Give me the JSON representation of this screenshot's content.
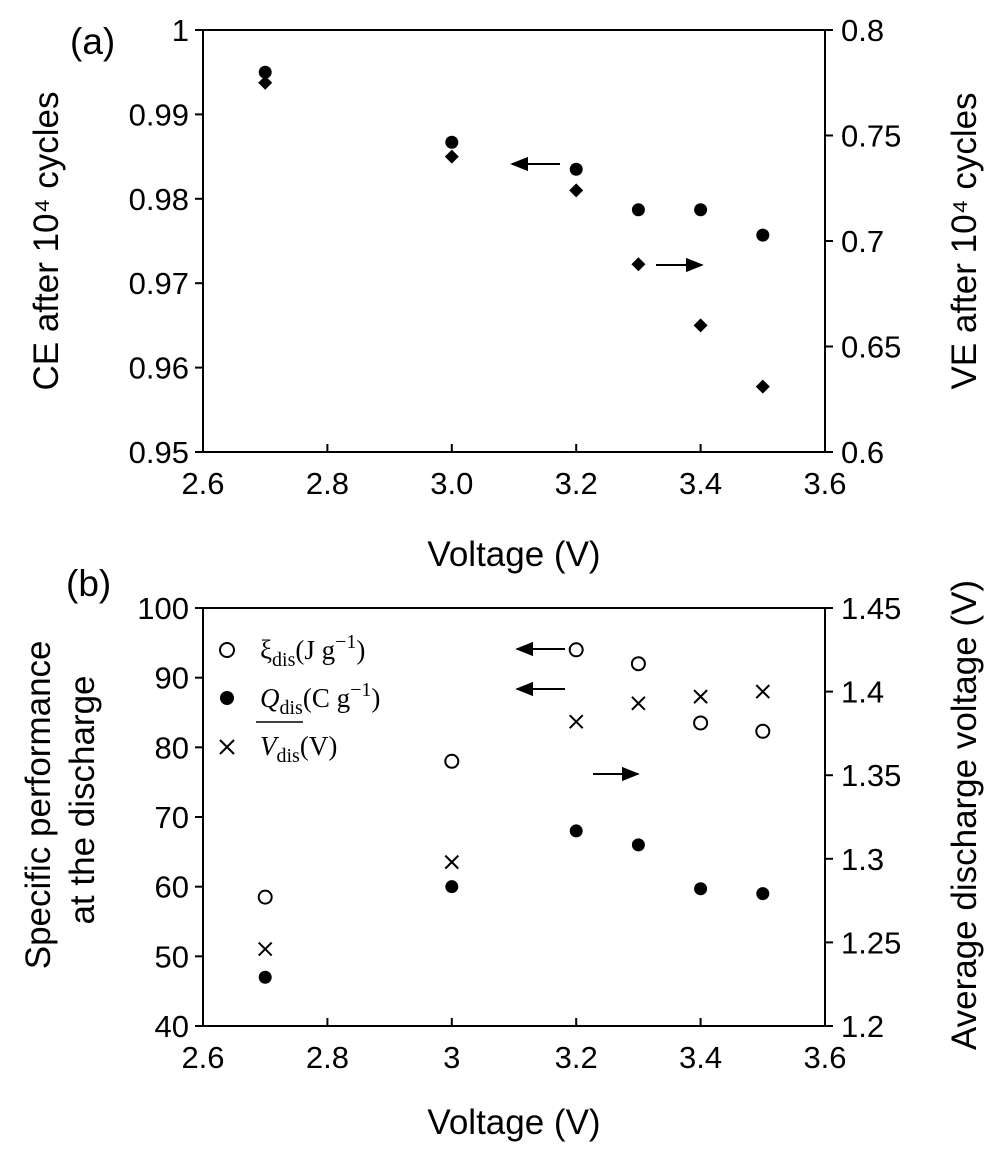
{
  "chart_data": [
    {
      "type": "scatter",
      "panel_label": "(a)",
      "xlabel": "Voltage (V)",
      "ylabel_left": "CE after 10⁴ cycles",
      "ylabel_right": "VE after 10⁴ cycles",
      "xlim": [
        2.6,
        3.6
      ],
      "ylim_left": [
        0.95,
        1.0
      ],
      "ylim_right": [
        0.6,
        0.8
      ],
      "xticks": [
        2.6,
        2.8,
        3.0,
        3.2,
        3.4,
        3.6
      ],
      "xtick_labels": [
        "2.6",
        "2.8",
        "3.0",
        "3.2",
        "3.4",
        "3.6"
      ],
      "yticks_left": [
        "0.95",
        "0.96",
        "0.97",
        "0.98",
        "0.99",
        "1"
      ],
      "yticks_right": [
        "0.6",
        "0.65",
        "0.7",
        "0.75",
        "0.8"
      ],
      "series": [
        {
          "marker": "filled-circle",
          "axis": "left",
          "x": [
            2.7,
            3.0,
            3.2,
            3.3,
            3.4,
            3.5
          ],
          "y": [
            0.995,
            0.9867,
            0.9835,
            0.9787,
            0.9787,
            0.9757
          ]
        },
        {
          "marker": "filled-diamond",
          "axis": "right",
          "x": [
            2.7,
            3.0,
            3.2,
            3.3,
            3.4,
            3.5
          ],
          "y": [
            0.775,
            0.74,
            0.724,
            0.689,
            0.66,
            0.631
          ]
        }
      ],
      "annotations": [
        "left-arrow near CE series",
        "right-arrow near VE series"
      ]
    },
    {
      "type": "scatter",
      "panel_label": "(b)",
      "xlabel": "Voltage (V)",
      "ylabel_left": "Specific performance at the discharge",
      "ylabel_right": "Average discharge voltage (V)",
      "xlim": [
        2.6,
        3.6
      ],
      "ylim_left": [
        40,
        100
      ],
      "ylim_right": [
        1.2,
        1.45
      ],
      "xticks": [
        2.6,
        2.8,
        3.0,
        3.2,
        3.4,
        3.6
      ],
      "xtick_labels": [
        "2.6",
        "2.8",
        "3",
        "3.2",
        "3.4",
        "3.6"
      ],
      "yticks_left": [
        "40",
        "50",
        "60",
        "70",
        "80",
        "90",
        "100"
      ],
      "yticks_right": [
        "1.2",
        "1.25",
        "1.3",
        "1.35",
        "1.4",
        "1.45"
      ],
      "series": [
        {
          "name": "ξ_dis (J g⁻¹)",
          "marker": "open-circle",
          "axis": "left",
          "x": [
            2.7,
            3.0,
            3.2,
            3.3,
            3.4,
            3.5
          ],
          "y": [
            58.5,
            78.0,
            94.0,
            92.0,
            83.5,
            82.3
          ]
        },
        {
          "name": "Q_dis (C g⁻¹)",
          "marker": "filled-circle",
          "axis": "left",
          "x": [
            2.7,
            3.0,
            3.2,
            3.3,
            3.4,
            3.5
          ],
          "y": [
            47.0,
            60.0,
            68.0,
            66.0,
            59.7,
            59.0
          ]
        },
        {
          "name": "V̄_dis (V)",
          "marker": "cross",
          "axis": "right",
          "x": [
            2.7,
            3.0,
            3.2,
            3.3,
            3.4,
            3.5
          ],
          "y": [
            1.246,
            1.298,
            1.382,
            1.393,
            1.397,
            1.4
          ]
        }
      ],
      "legend": {
        "position": "top-left",
        "items": [
          {
            "symbol": "ξ",
            "sub": "dis",
            "unit": "(J g",
            "sup": "−1",
            "close": ")"
          },
          {
            "symbol": "Q",
            "sub": "dis",
            "unit": "(C g",
            "sup": "−1",
            "close": ")"
          },
          {
            "symbol": "V",
            "sub": "dis",
            "unit": "(V)",
            "sup": "",
            "close": ""
          }
        ]
      },
      "annotations": [
        "left-arrow near ξ series",
        "right-arrow near V series",
        "left-arrow near Q series"
      ]
    }
  ]
}
